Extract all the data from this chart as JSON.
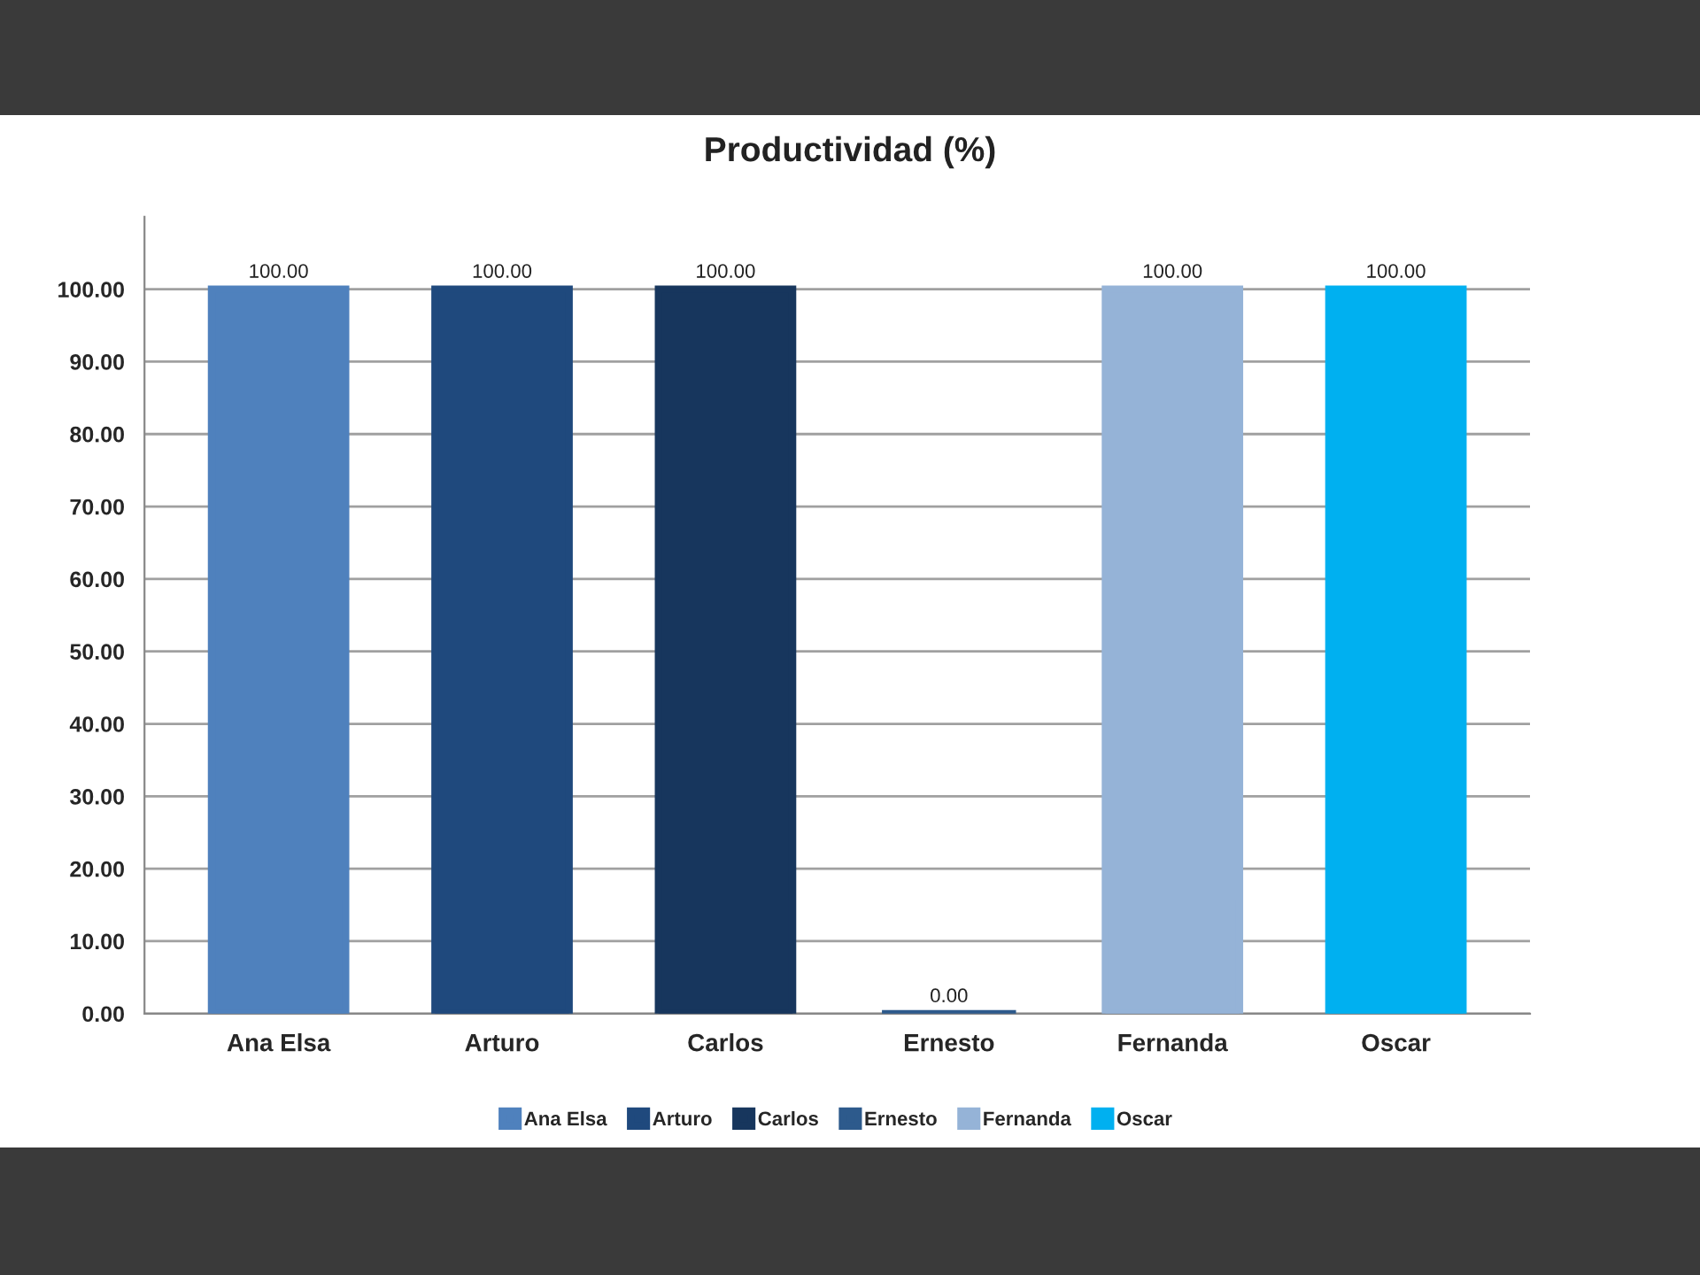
{
  "chart_data": {
    "type": "bar",
    "title": "Productividad (%)",
    "categories": [
      "Ana Elsa",
      "Arturo",
      "Carlos",
      "Ernesto",
      "Fernanda",
      "Oscar"
    ],
    "series": [
      {
        "name": "Ana Elsa",
        "color": "#4f81bd",
        "values": [
          100,
          null,
          null,
          null,
          null,
          null
        ],
        "value_labels": [
          "100.00",
          null,
          null,
          null,
          null,
          null
        ]
      },
      {
        "name": "Arturo",
        "color": "#1f497d",
        "values": [
          null,
          100,
          null,
          null,
          null,
          null
        ],
        "value_labels": [
          null,
          "100.00",
          null,
          null,
          null,
          null
        ]
      },
      {
        "name": "Carlos",
        "color": "#17365d",
        "values": [
          null,
          null,
          100,
          null,
          null,
          null
        ],
        "value_labels": [
          null,
          null,
          "100.00",
          null,
          null,
          null
        ]
      },
      {
        "name": "Ernesto",
        "color": "#2d5a8c",
        "values": [
          null,
          null,
          null,
          0,
          null,
          null
        ],
        "value_labels": [
          null,
          null,
          null,
          "0.00",
          null,
          null
        ]
      },
      {
        "name": "Fernanda",
        "color": "#95b3d7",
        "values": [
          null,
          null,
          null,
          null,
          100,
          null
        ],
        "value_labels": [
          null,
          null,
          null,
          null,
          "100.00",
          null
        ]
      },
      {
        "name": "Oscar",
        "color": "#00b0f0",
        "values": [
          null,
          null,
          null,
          null,
          null,
          100
        ],
        "value_labels": [
          null,
          null,
          null,
          null,
          null,
          "100.00"
        ]
      }
    ],
    "ylim": [
      0,
      110
    ],
    "yticks": [
      {
        "value": 0,
        "label": "0.00"
      },
      {
        "value": 10,
        "label": "10.00"
      },
      {
        "value": 20,
        "label": "20.00"
      },
      {
        "value": 30,
        "label": "30.00"
      },
      {
        "value": 40,
        "label": "40.00"
      },
      {
        "value": 50,
        "label": "50.00"
      },
      {
        "value": 60,
        "label": "60.00"
      },
      {
        "value": 70,
        "label": "70.00"
      },
      {
        "value": 80,
        "label": "80.00"
      },
      {
        "value": 90,
        "label": "90.00"
      },
      {
        "value": 100,
        "label": "100.00"
      }
    ],
    "grid": "y",
    "legend": "bottom"
  }
}
